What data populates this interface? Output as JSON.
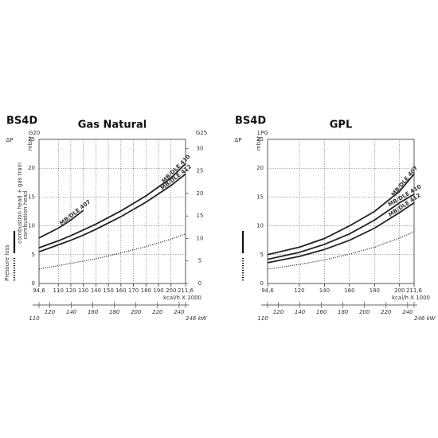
{
  "chart_data": [
    {
      "type": "line",
      "label": "BS4D",
      "title": "Gas Natural",
      "delta": "ΔP",
      "y_unit": "mbar",
      "y_gas": "G20",
      "y2_gas": "G25",
      "x_label": "kcal/h X 1000",
      "legend": {
        "title": "Pressure loss",
        "solid": "combustion head + gas train"
      },
      "x": [
        94.6,
        110,
        120,
        130,
        140,
        160,
        180,
        200,
        211.6
      ],
      "series": [
        {
          "name": "MB/DLE 407",
          "color": "#222222",
          "dash": "solid",
          "values": [
            7.9,
            9.6,
            11.0,
            12.7,
            null,
            null,
            null,
            null,
            null
          ]
        },
        {
          "name": "MB/DLE 410",
          "color": "#222222",
          "dash": "solid",
          "values": [
            6.2,
            7.4,
            8.3,
            9.3,
            10.3,
            12.6,
            15.2,
            18.3,
            20.8
          ]
        },
        {
          "name": "MB/DLE 412",
          "color": "#222222",
          "dash": "solid",
          "values": [
            5.5,
            6.7,
            7.5,
            8.4,
            9.4,
            11.6,
            14.1,
            17.0,
            19.0
          ]
        },
        {
          "name": "combustion head",
          "color": "#222222",
          "dash": "dotted",
          "values": [
            2.5,
            3.1,
            3.5,
            3.9,
            4.3,
            5.3,
            6.4,
            7.7,
            8.6
          ]
        }
      ],
      "xlim": [
        94.6,
        211.6
      ],
      "xticks": [
        {
          "value": 94.6,
          "label": "94,6"
        },
        110,
        120,
        130,
        140,
        150,
        160,
        170,
        180,
        190,
        200,
        {
          "value": 211.6,
          "label": "211,6"
        }
      ],
      "ylim": [
        0,
        25
      ],
      "yticks": [
        0,
        5,
        10,
        15,
        20,
        25
      ],
      "y2lim": [
        0,
        32
      ],
      "y2ticks": [
        0,
        5,
        10,
        15,
        20,
        25,
        30
      ],
      "x2lim": [
        110,
        246
      ],
      "x2ticks": [
        110,
        120,
        140,
        160,
        180,
        200,
        220,
        240,
        {
          "value": 246,
          "label": "246 kW"
        }
      ],
      "grid": true
    },
    {
      "type": "line",
      "label": "BS4D",
      "title": "GPL",
      "delta": "ΔP",
      "y_unit": "mbar",
      "y_gas": "LPG",
      "x_label": "kcal/h X 1000",
      "x": [
        94.6,
        120,
        140,
        160,
        180,
        200,
        211.6
      ],
      "series": [
        {
          "name": "MB/DLE 407",
          "color": "#222222",
          "dash": "solid",
          "values": [
            5.0,
            6.3,
            7.8,
            10.0,
            12.5,
            16.0,
            19.0
          ]
        },
        {
          "name": "MB/DLE 410",
          "color": "#222222",
          "dash": "solid",
          "values": [
            4.2,
            5.4,
            6.8,
            8.6,
            11.0,
            14.0,
            15.5
          ]
        },
        {
          "name": "MB/DLE 412",
          "color": "#222222",
          "dash": "solid",
          "values": [
            3.6,
            4.7,
            5.9,
            7.5,
            9.6,
            12.3,
            14.0
          ]
        },
        {
          "name": "combustion head",
          "color": "#222222",
          "dash": "dotted",
          "values": [
            2.5,
            3.3,
            4.1,
            5.1,
            6.3,
            7.9,
            9.0
          ]
        }
      ],
      "xlim": [
        94.6,
        211.6
      ],
      "xticks": [
        {
          "value": 94.6,
          "label": "94,6"
        },
        120,
        140,
        160,
        180,
        200,
        {
          "value": 211.6,
          "label": "211,6"
        }
      ],
      "ylim": [
        0,
        25
      ],
      "yticks": [
        0,
        5,
        10,
        15,
        20,
        25
      ],
      "x2lim": [
        110,
        246
      ],
      "x2ticks": [
        110,
        120,
        140,
        160,
        180,
        200,
        220,
        240,
        {
          "value": 246,
          "label": "246 kW"
        }
      ],
      "grid": true
    }
  ]
}
